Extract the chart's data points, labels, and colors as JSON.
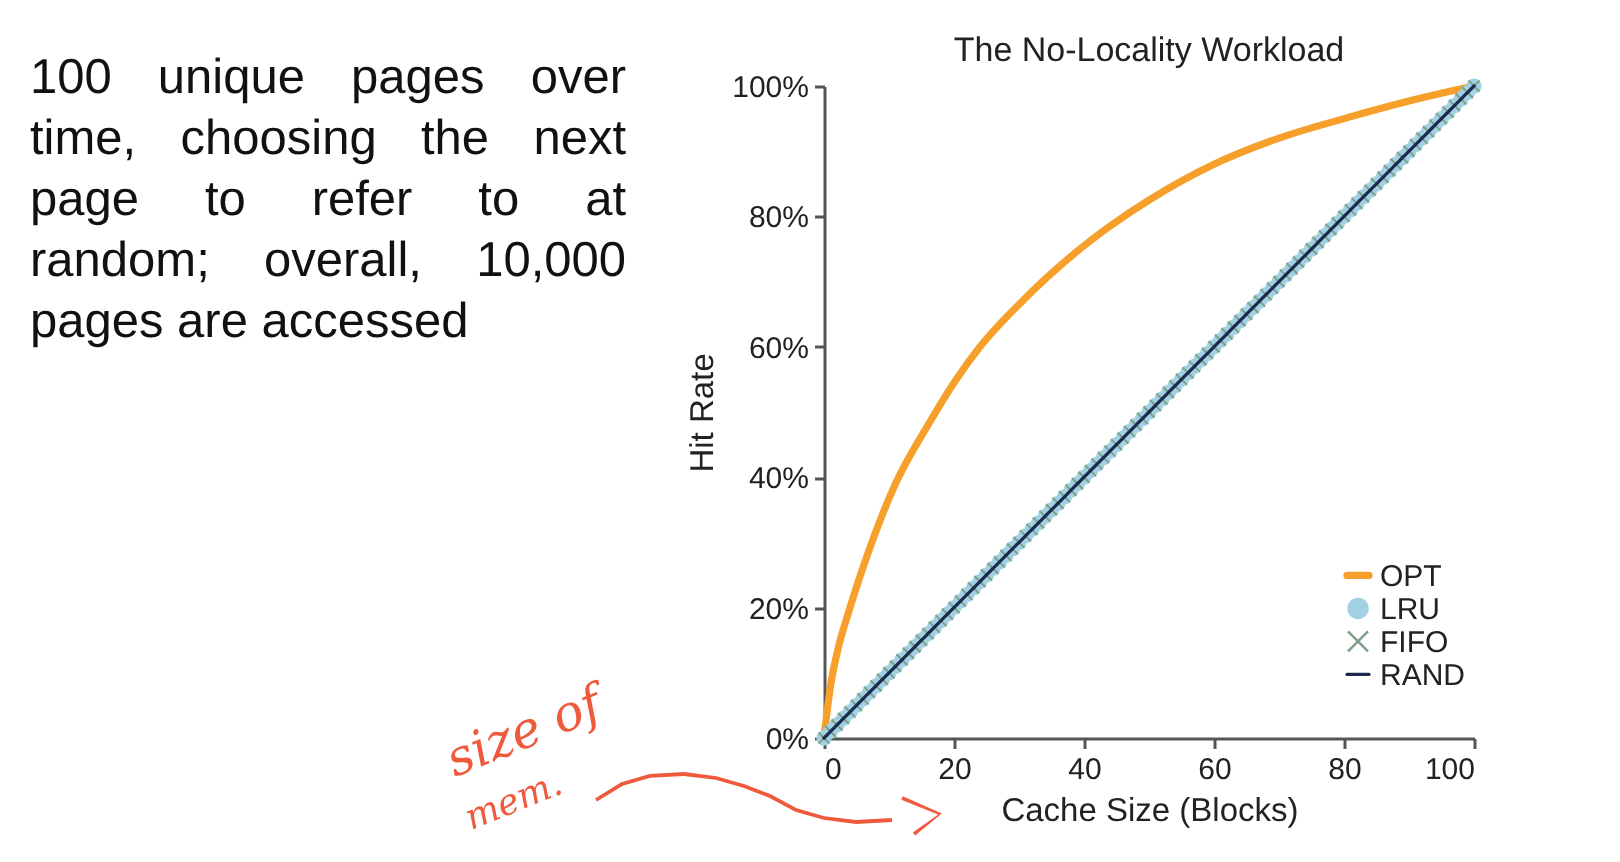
{
  "chart_data": {
    "type": "line",
    "title": "The No-Locality Workload",
    "xlabel": "Cache Size (Blocks)",
    "ylabel": "Hit Rate",
    "annotations": [
      "100 unique pages over time, choosing the next page to refer to at random; overall, 10,000 pages are accessed",
      "size of mem."
    ],
    "x": [
      0,
      1,
      2,
      3,
      4,
      5,
      6,
      7,
      8,
      9,
      10,
      11,
      12,
      13,
      14,
      15,
      16,
      17,
      18,
      19,
      20,
      21,
      22,
      23,
      24,
      25,
      26,
      27,
      28,
      29,
      30,
      31,
      32,
      33,
      34,
      35,
      36,
      37,
      38,
      39,
      40,
      41,
      42,
      43,
      44,
      45,
      46,
      47,
      48,
      49,
      50,
      51,
      52,
      53,
      54,
      55,
      56,
      57,
      58,
      59,
      60,
      61,
      62,
      63,
      64,
      65,
      66,
      67,
      68,
      69,
      70,
      71,
      72,
      73,
      74,
      75,
      76,
      77,
      78,
      79,
      80,
      81,
      82,
      83,
      84,
      85,
      86,
      87,
      88,
      89,
      90,
      91,
      92,
      93,
      94,
      95,
      96,
      97,
      98,
      99,
      100
    ],
    "series": [
      {
        "name": "OPT",
        "color": "#f6a02b",
        "marker": "none",
        "x": [
          0,
          1,
          2,
          4,
          7,
          11,
          16,
          20,
          24,
          30,
          40,
          44,
          50,
          60,
          70,
          80,
          90,
          100
        ],
        "values": [
          0,
          8,
          13,
          20,
          29,
          39,
          48,
          54.5,
          60,
          66.5,
          75.5,
          78.5,
          82.5,
          88,
          92,
          95,
          97.7,
          100
        ]
      },
      {
        "name": "LRU",
        "type": "scatter",
        "color": "#a0d2e4",
        "marker": "circle",
        "values": [
          0,
          1,
          2,
          3,
          4,
          5,
          6,
          7,
          8,
          9,
          10,
          11,
          12,
          13,
          14,
          15,
          16,
          17,
          18,
          19,
          20,
          21,
          22,
          23,
          24,
          25,
          26,
          27,
          28,
          29,
          30,
          31,
          32,
          33,
          34,
          35,
          36,
          37,
          38,
          39,
          40,
          41,
          42,
          43,
          44,
          45,
          46,
          47,
          48,
          49,
          50,
          51,
          52,
          53,
          54,
          55,
          56,
          57,
          58,
          59,
          60,
          61,
          62,
          63,
          64,
          65,
          66,
          67,
          68,
          69,
          70,
          71,
          72,
          73,
          74,
          75,
          76,
          77,
          78,
          79,
          80,
          81,
          82,
          83,
          84,
          85,
          86,
          87,
          88,
          89,
          90,
          91,
          92,
          93,
          94,
          95,
          96,
          97,
          98,
          99,
          100
        ]
      },
      {
        "name": "FIFO",
        "type": "scatter",
        "color": "#7fa08a",
        "marker": "cross",
        "values": [
          0,
          1,
          2,
          3,
          4,
          5,
          6,
          7,
          8,
          9,
          10,
          11,
          12,
          13,
          14,
          15,
          16,
          17,
          18,
          19,
          20,
          21,
          22,
          23,
          24,
          25,
          26,
          27,
          28,
          29,
          30,
          31,
          32,
          33,
          34,
          35,
          36,
          37,
          38,
          39,
          40,
          41,
          42,
          43,
          44,
          45,
          46,
          47,
          48,
          49,
          50,
          51,
          52,
          53,
          54,
          55,
          56,
          57,
          58,
          59,
          60,
          61,
          62,
          63,
          64,
          65,
          66,
          67,
          68,
          69,
          70,
          71,
          72,
          73,
          74,
          75,
          76,
          77,
          78,
          79,
          80,
          81,
          82,
          83,
          84,
          85,
          86,
          87,
          88,
          89,
          90,
          91,
          92,
          93,
          94,
          95,
          96,
          97,
          98,
          99,
          100
        ]
      },
      {
        "name": "RAND",
        "color": "#1b2a4e",
        "marker": "none",
        "values": [
          0,
          1,
          2,
          3,
          4,
          5,
          6,
          7,
          8,
          9,
          10,
          11,
          12,
          13,
          14,
          15,
          16,
          17,
          18,
          19,
          20,
          21,
          22,
          23,
          24,
          25,
          26,
          27,
          28,
          29,
          30,
          31,
          32,
          33,
          34,
          35,
          36,
          37,
          38,
          39,
          40,
          41,
          42,
          43,
          44,
          45,
          46,
          47,
          48,
          49,
          50,
          51,
          52,
          53,
          54,
          55,
          56,
          57,
          58,
          59,
          60,
          61,
          62,
          63,
          64,
          65,
          66,
          67,
          68,
          69,
          70,
          71,
          72,
          73,
          74,
          75,
          76,
          77,
          78,
          79,
          80,
          81,
          82,
          83,
          84,
          85,
          86,
          87,
          88,
          89,
          90,
          91,
          92,
          93,
          94,
          95,
          96,
          97,
          98,
          99,
          100
        ]
      }
    ],
    "xlim": [
      0,
      100
    ],
    "xticks": [
      0,
      20,
      40,
      60,
      80,
      100
    ],
    "ylim": [
      0,
      100
    ],
    "yticks": [
      {
        "value": 0,
        "label": "0%"
      },
      {
        "value": 20,
        "label": "20%"
      },
      {
        "value": 40,
        "label": "40%"
      },
      {
        "value": 60,
        "label": "60%"
      },
      {
        "value": 80,
        "label": "80%"
      },
      {
        "value": 100,
        "label": "100%"
      }
    ],
    "grid": false,
    "legend": "bottom right"
  }
}
